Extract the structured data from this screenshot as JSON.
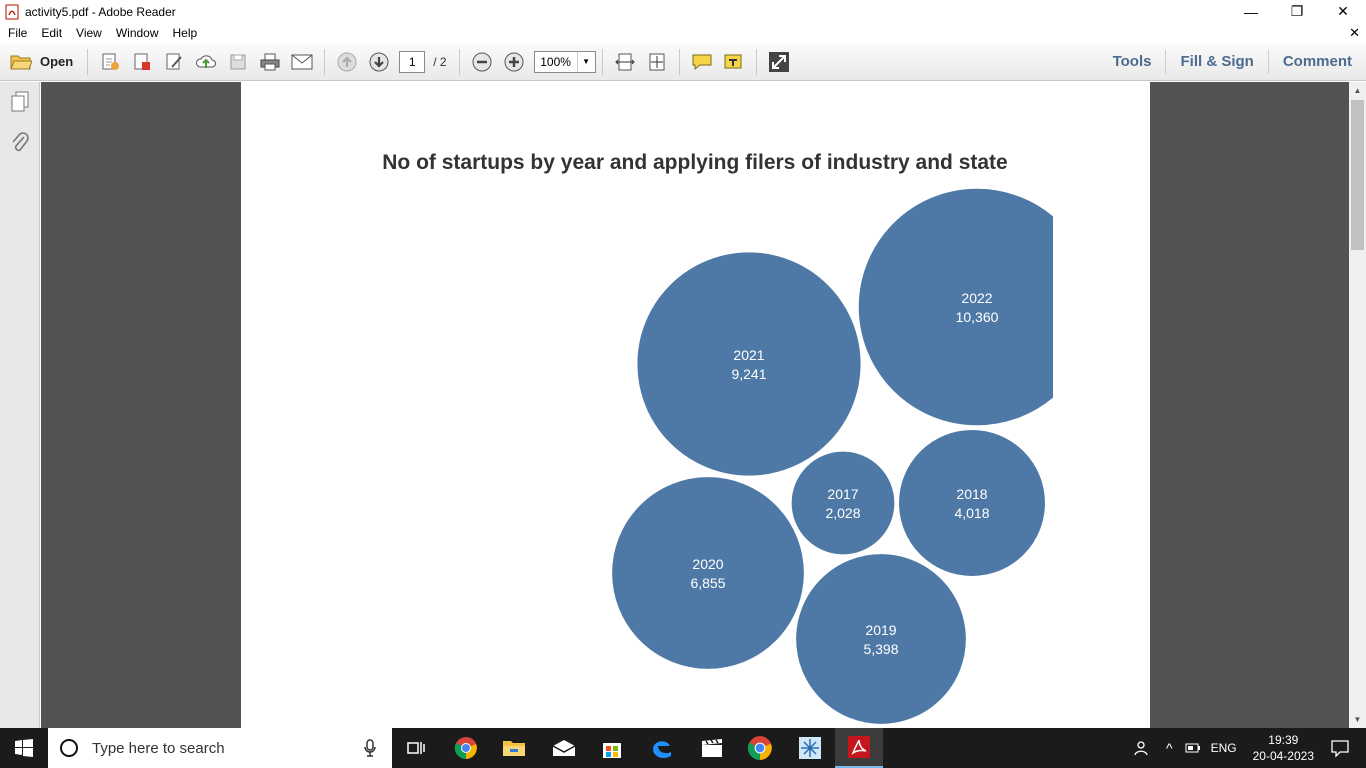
{
  "window": {
    "title": "activity5.pdf - Adobe Reader",
    "minimize": "—",
    "maximize": "❐",
    "close": "✕"
  },
  "menu": {
    "items": [
      "File",
      "Edit",
      "View",
      "Window",
      "Help"
    ],
    "close_doc": "✕"
  },
  "toolbar": {
    "open_label": "Open",
    "page_current": "1",
    "page_total": "/ 2",
    "zoom": "100%",
    "tools_label": "Tools",
    "fillsign_label": "Fill & Sign",
    "comment_label": "Comment"
  },
  "document": {
    "chart_title": "No of startups by year and applying filers of industry and state"
  },
  "chart_data": {
    "type": "packed-bubble",
    "title": "No of startups by year and applying filers of industry and state",
    "bubble_color": "#4e79a7",
    "bubbles": [
      {
        "label": "2022",
        "value": 10360,
        "value_text": "10,360"
      },
      {
        "label": "2021",
        "value": 9241,
        "value_text": "9,241"
      },
      {
        "label": "2020",
        "value": 6855,
        "value_text": "6,855"
      },
      {
        "label": "2019",
        "value": 5398,
        "value_text": "5,398"
      },
      {
        "label": "2018",
        "value": 4018,
        "value_text": "4,018"
      },
      {
        "label": "2017",
        "value": 2028,
        "value_text": "2,028"
      }
    ]
  },
  "taskbar": {
    "search_placeholder": "Type here to search",
    "language": "ENG",
    "time": "19:39",
    "date": "20-04-2023"
  }
}
